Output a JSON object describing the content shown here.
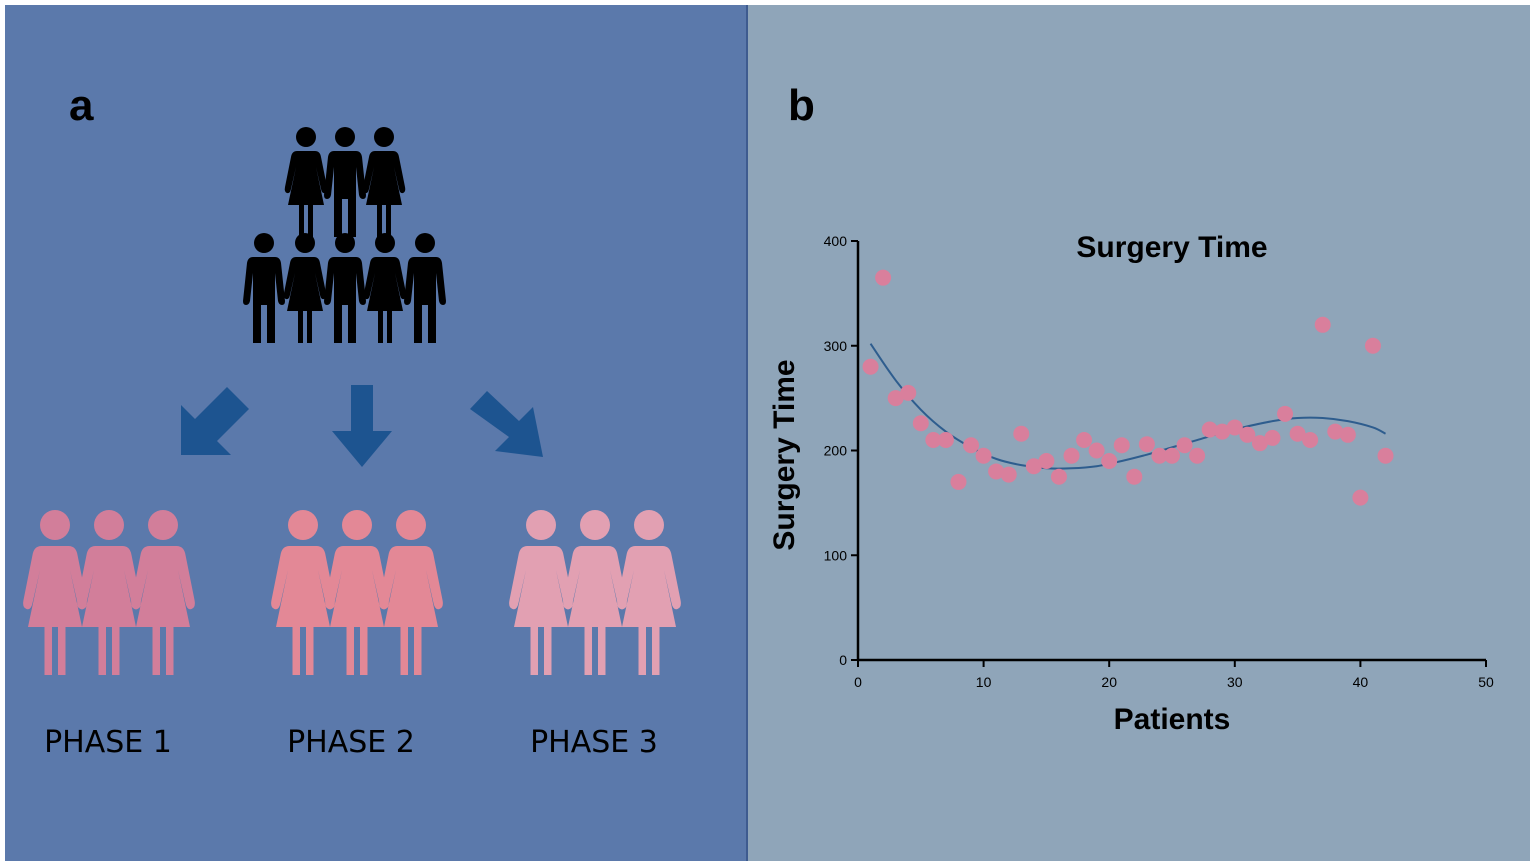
{
  "panel_a": {
    "letter": "a",
    "phases": [
      "PHASE 1",
      "PHASE 2",
      "PHASE 3"
    ],
    "colors": {
      "population": "#000000",
      "arrow": "#1d5490",
      "phase1": "#d27e9a",
      "phase2": "#e38896",
      "phase3": "#e2a0b2"
    }
  },
  "panel_b": {
    "letter": "b"
  },
  "chart_data": {
    "type": "scatter",
    "title": "Surgery Time",
    "xlabel": "Patients",
    "ylabel": "Surgery Time",
    "xlim": [
      0,
      50
    ],
    "ylim": [
      0,
      400
    ],
    "xticks": [
      0,
      10,
      20,
      30,
      40,
      50
    ],
    "yticks": [
      0,
      100,
      200,
      300,
      400
    ],
    "point_color": "#d97f9c",
    "fit_color": "#2e5d8e",
    "series": [
      {
        "name": "Surgery Time",
        "x": [
          1,
          2,
          3,
          4,
          5,
          6,
          7,
          8,
          9,
          10,
          11,
          12,
          13,
          14,
          15,
          16,
          17,
          18,
          19,
          20,
          21,
          22,
          23,
          24,
          25,
          26,
          27,
          28,
          29,
          30,
          31,
          32,
          33,
          34,
          35,
          36,
          37,
          38,
          39,
          40,
          41,
          42
        ],
        "values": [
          280,
          365,
          250,
          255,
          226,
          210,
          210,
          170,
          205,
          195,
          180,
          177,
          216,
          185,
          190,
          175,
          195,
          210,
          200,
          190,
          205,
          175,
          206,
          195,
          195,
          205,
          195,
          220,
          218,
          222,
          215,
          207,
          212,
          235,
          216,
          210,
          320,
          218,
          215,
          155,
          300,
          195
        ]
      }
    ],
    "fit": {
      "type": "polynomial",
      "x": [
        1,
        3,
        5,
        7,
        9,
        11,
        13,
        15,
        17,
        19,
        21,
        23,
        25,
        27,
        29,
        31,
        33,
        35,
        37,
        39,
        41,
        42
      ],
      "values": [
        302,
        267,
        239,
        218,
        203,
        192,
        186,
        183,
        183,
        185,
        190,
        196,
        203,
        210,
        217,
        223,
        228,
        231,
        231,
        228,
        222,
        216
      ]
    }
  }
}
